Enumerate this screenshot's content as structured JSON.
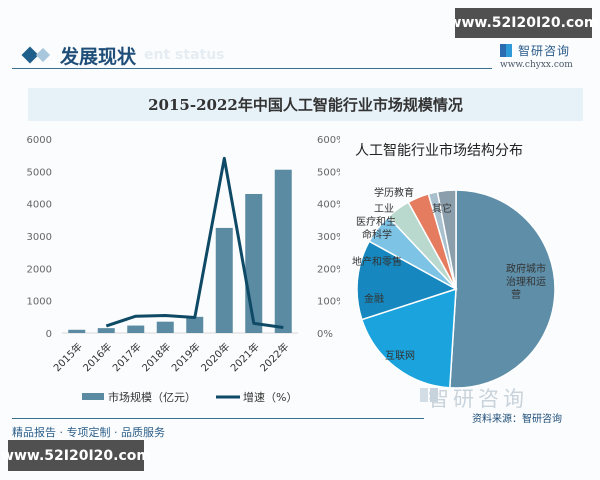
{
  "header": {
    "title": "发展现状",
    "subtitle_watermark": "ent status",
    "brand_name": "智研咨询",
    "brand_url": "www.chyxx.com"
  },
  "watermarks": {
    "top_right": "www.52I20I20.com",
    "bottom_left": "www.52I20I20.com"
  },
  "footer": {
    "slogan": "精品报告 · 专项定制 · 品质服务",
    "source": "资料来源：智研咨询",
    "brand_watermark": "智研咨询"
  },
  "colors": {
    "bar": "#5b8aa3",
    "line": "#0e4a66",
    "title_band": "#e6f1f8",
    "header_text": "#1f4e79"
  },
  "chart_data": [
    {
      "type": "bar+line",
      "title": "2015-2022年中国人工智能行业市场规模情况",
      "categories": [
        "2015年",
        "2016年",
        "2017年",
        "2018年",
        "2019年",
        "2020年",
        "2021年",
        "2022年"
      ],
      "series": [
        {
          "name": "市场规模（亿元）",
          "type": "bar",
          "axis": "left",
          "values": [
            100,
            150,
            230,
            350,
            500,
            3250,
            4300,
            5050
          ]
        },
        {
          "name": "增速（%）",
          "type": "line",
          "axis": "right",
          "values": [
            null,
            22,
            52,
            54,
            48,
            540,
            30,
            17
          ]
        }
      ],
      "left_axis": {
        "ticks": [
          "0",
          "1000",
          "2000",
          "3000",
          "4000",
          "5000",
          "6000"
        ],
        "ylim": [
          0,
          6000
        ]
      },
      "right_axis": {
        "ticks": [
          "0%",
          "100%",
          "200%",
          "300%",
          "400%",
          "500%",
          "600%"
        ],
        "ylim": [
          0,
          600
        ]
      },
      "legend": [
        "市场规模（亿元）",
        "增速（%）"
      ],
      "legend_position": "bottom",
      "grid": false
    },
    {
      "type": "pie",
      "title": "人工智能行业市场结构分布",
      "slices": [
        {
          "label": "政府城市治理和运营",
          "value": 51,
          "color": "#5e8ea8"
        },
        {
          "label": "互联网",
          "value": 19,
          "color": "#1ba3dd"
        },
        {
          "label": "金融",
          "value": 13,
          "color": "#1688bf"
        },
        {
          "label": "地产和零售",
          "value": 5,
          "color": "#7cc3e6"
        },
        {
          "label": "医疗和生命科学",
          "value": 4,
          "color": "#b9d9cf"
        },
        {
          "label": "工业",
          "value": 3.5,
          "color": "#e57b5f"
        },
        {
          "label": "学历教育",
          "value": 1.5,
          "color": "#a9c0cf"
        },
        {
          "label": "其它",
          "value": 3,
          "color": "#8a9eab"
        }
      ]
    }
  ]
}
